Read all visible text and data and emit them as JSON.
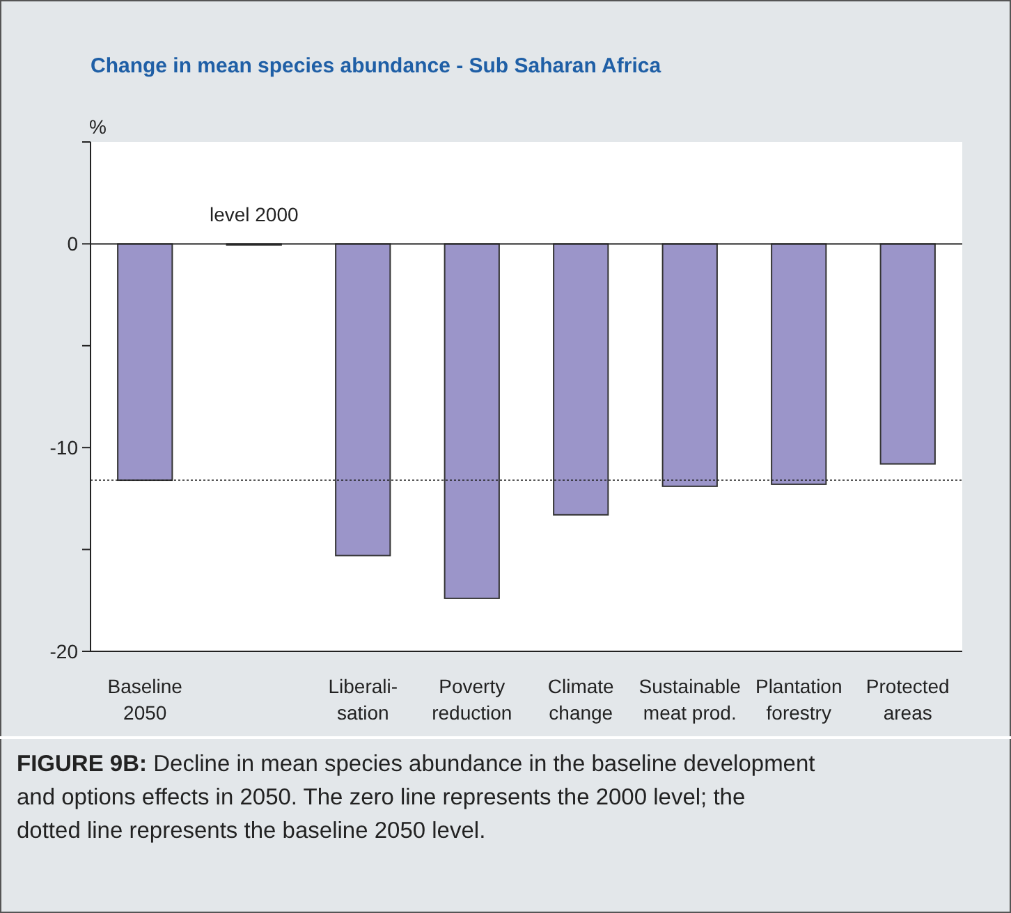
{
  "chart_data": {
    "type": "bar",
    "title": "Change in mean species abundance - Sub Saharan Africa",
    "ylabel": "%",
    "categories": [
      "Baseline\n2050",
      null,
      "Liberali-\nsation",
      "Poverty\nreduction",
      "Climate\nchange",
      "Sustainable\nmeat prod.",
      "Plantation\nforestry",
      "Protected\nareas"
    ],
    "values": [
      -11.6,
      0,
      -15.3,
      -17.4,
      -13.3,
      -11.9,
      -11.8,
      -10.8
    ],
    "value_labels": [
      null,
      "level 2000",
      null,
      null,
      null,
      null,
      null,
      null
    ],
    "color": "#9b95c9",
    "ylim": [
      -20,
      5
    ],
    "yticks": [
      {
        "value": 5,
        "label": null
      },
      0,
      {
        "value": -5,
        "label": null
      },
      -10,
      {
        "value": -15,
        "label": null
      },
      -20
    ],
    "ref_lines": [
      {
        "axis": "y",
        "value": 0,
        "line_style": "solid"
      },
      {
        "axis": "y",
        "value": -11.6,
        "line_style": "dotted"
      }
    ],
    "grid": false,
    "annotations": [
      "FIGURE 9B: Decline in mean species abundance in the baseline development and options effects in 2050. The zero line represents the 2000 level; the dotted line represents the baseline 2050 level."
    ]
  }
}
